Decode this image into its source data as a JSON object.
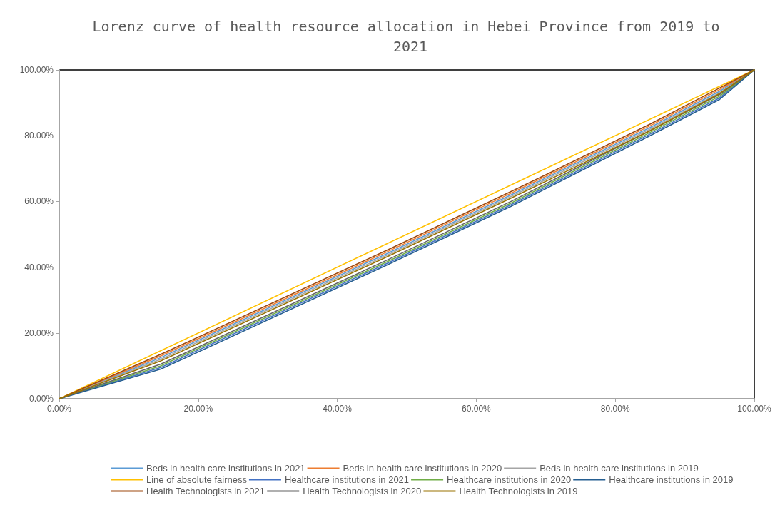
{
  "chart_data": {
    "type": "line",
    "title": "Lorenz curve of health resource allocation in Hebei Province from 2019 to 2021",
    "x": [
      0,
      14.6,
      47,
      65,
      85,
      95,
      100
    ],
    "series": [
      {
        "name": "Beds in health care institutions in 2021",
        "color": "#5b9bd5",
        "values": [
          0,
          12.5,
          44,
          62,
          82.5,
          93.5,
          100
        ]
      },
      {
        "name": "Beds in health care institutions in 2020",
        "color": "#ed7d31",
        "values": [
          0,
          13,
          44.5,
          62.5,
          83,
          94,
          100
        ]
      },
      {
        "name": "Beds in health care institutions in 2019",
        "color": "#a5a5a5",
        "values": [
          0,
          12,
          43.5,
          61.5,
          82,
          93,
          100
        ]
      },
      {
        "name": "Line of absolute fairness",
        "color": "#ffc000",
        "x": [
          0,
          100
        ],
        "values": [
          0,
          100
        ]
      },
      {
        "name": "Healthcare institutions in 2021",
        "color": "#4472c4",
        "values": [
          0,
          9.5,
          41,
          59,
          80.5,
          91.5,
          100
        ]
      },
      {
        "name": "Healthcare institutions in 2020",
        "color": "#70ad47",
        "values": [
          0,
          10,
          41.5,
          59.5,
          81,
          92,
          100
        ]
      },
      {
        "name": "Healthcare institutions in 2019",
        "color": "#255e91",
        "values": [
          0,
          9,
          40.5,
          58.5,
          80,
          91,
          100
        ]
      },
      {
        "name": "Health Technologists in 2021",
        "color": "#9e480e",
        "values": [
          0,
          13.5,
          45,
          63,
          83.5,
          94.5,
          100
        ]
      },
      {
        "name": "Health Technologists in 2020",
        "color": "#636363",
        "values": [
          0,
          10.5,
          42,
          60,
          81.5,
          92.5,
          100
        ]
      },
      {
        "name": "Health Technologists in 2019",
        "color": "#997300",
        "values": [
          0,
          11.5,
          43,
          61,
          81.5,
          92.8,
          100
        ]
      }
    ],
    "xlim": [
      0,
      100
    ],
    "ylim": [
      0,
      100
    ],
    "xticks": [
      {
        "value": 0,
        "label": "0.00%"
      },
      {
        "value": 20,
        "label": "20.00%"
      },
      {
        "value": 40,
        "label": "40.00%"
      },
      {
        "value": 60,
        "label": "60.00%"
      },
      {
        "value": 80,
        "label": "80.00%"
      },
      {
        "value": 100,
        "label": "100.00%"
      }
    ],
    "yticks": [
      {
        "value": 0,
        "label": "0.00%"
      },
      {
        "value": 20,
        "label": "20.00%"
      },
      {
        "value": 40,
        "label": "40.00%"
      },
      {
        "value": 60,
        "label": "60.00%"
      },
      {
        "value": 80,
        "label": "80.00%"
      },
      {
        "value": 100,
        "label": "100.00%"
      }
    ],
    "grid": false,
    "legend": "bottom",
    "marker": "none",
    "line_style": "solid"
  }
}
